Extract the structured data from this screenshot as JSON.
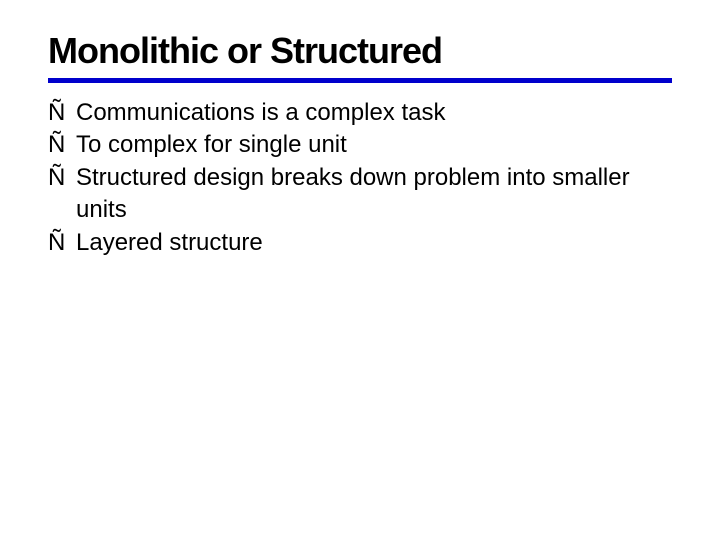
{
  "slide": {
    "title": "Monolithic or Structured",
    "title_fontsize": 36,
    "title_color": "#000000",
    "underline_color": "#0000cc",
    "underline_thickness": 5,
    "background_color": "#ffffff",
    "bullet_marker": "Ñ",
    "bullet_fontsize": 24,
    "bullet_color": "#000000",
    "bullet_line_height": 1.35,
    "bullets": [
      "Communications is a complex task",
      "To complex for single unit",
      "Structured design breaks down problem into smaller units",
      "Layered structure"
    ]
  }
}
